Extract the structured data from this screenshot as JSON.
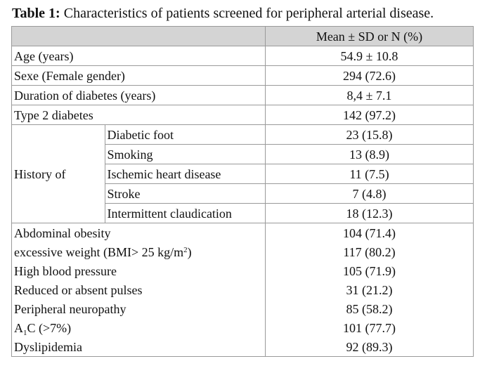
{
  "caption": {
    "label": "Table 1:",
    "text": " Characteristics of patients screened for peripheral arterial disease."
  },
  "header": {
    "value_col": "Mean ± SD or N (%)"
  },
  "rows": [
    {
      "label": "Age (years)",
      "value": "54.9 ± 10.8"
    },
    {
      "label": "Sexe (Female gender)",
      "value": "294 (72.6)"
    },
    {
      "label": "Duration of diabetes (years)",
      "value": "8,4 ± 7.1"
    },
    {
      "label": "Type 2 diabetes",
      "value": "142 (97.2)"
    }
  ],
  "history": {
    "label": "History of",
    "items": [
      {
        "label": "Diabetic foot",
        "value": "23 (15.8)"
      },
      {
        "label": "Smoking",
        "value": "13 (8.9)"
      },
      {
        "label": "Ischemic heart disease",
        "value": "11 (7.5)"
      },
      {
        "label": "Stroke",
        "value": "7 (4.8)"
      },
      {
        "label": "Intermittent claudication",
        "value": "18 (12.3)"
      }
    ]
  },
  "rows_after": [
    {
      "label": "Abdominal obesity",
      "value": "104 (71.4)"
    },
    {
      "label_main": "excessive weight (BMI> 25 kg/m",
      "label_sup": "2",
      "label_end": ")",
      "value": "117 (80.2)"
    },
    {
      "label": "High blood pressure",
      "value": "105 (71.9)"
    },
    {
      "label": "Reduced or absent pulses",
      "value": "31 (21.2)"
    },
    {
      "label": "Peripheral neuropathy",
      "value": "85 (58.2)"
    },
    {
      "label_main": "A",
      "label_sub": "1",
      "label_end": "C (>7%)",
      "value": "101 (77.7)"
    },
    {
      "label": "Dyslipidemia",
      "value": "92 (89.3)"
    }
  ]
}
